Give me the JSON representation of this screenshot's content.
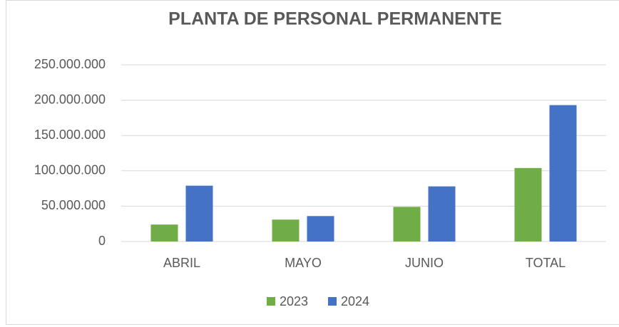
{
  "chart_data": {
    "type": "bar",
    "title": "PLANTA DE PERSONAL PERMANENTE",
    "categories": [
      "ABRIL",
      "MAYO",
      "JUNIO",
      "TOTAL"
    ],
    "series": [
      {
        "name": "2023",
        "color": "#70ad47",
        "values": [
          24000000,
          31000000,
          49000000,
          104000000
        ]
      },
      {
        "name": "2024",
        "color": "#4472c4",
        "values": [
          79000000,
          36000000,
          78000000,
          193000000
        ]
      }
    ],
    "ylim": [
      0,
      250000000
    ],
    "yticks": [
      0,
      {
        "value": 50000000,
        "label": "50.000.000"
      },
      {
        "value": 100000000,
        "label": "100.000.000"
      },
      {
        "value": 150000000,
        "label": "150.000.000"
      },
      {
        "value": 200000000,
        "label": "200.000.000"
      },
      {
        "value": 250000000,
        "label": "250.000.000"
      }
    ],
    "grid": true,
    "legend": "bottom"
  }
}
